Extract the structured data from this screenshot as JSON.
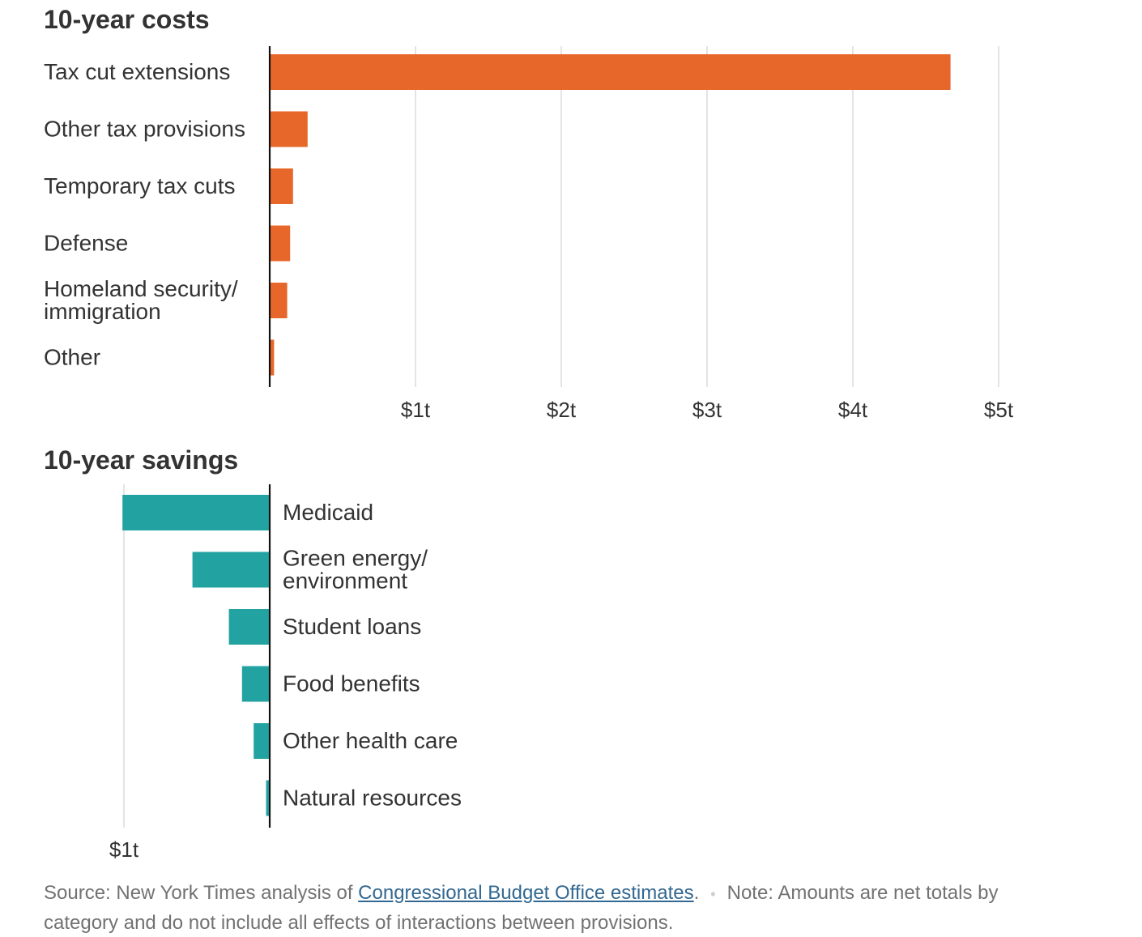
{
  "colors": {
    "costs": "#E7672A",
    "savings": "#22A3A2",
    "text": "#333333",
    "grid": "#d6d6d6",
    "axis": "#111111"
  },
  "chart_data": [
    {
      "type": "bar",
      "orientation": "horizontal",
      "title": "10-year costs",
      "unit": "trillion dollars",
      "categories": [
        "Tax cut extensions",
        "Other tax provisions",
        "Temporary tax cuts",
        "Defense",
        "Homeland security/ immigration",
        "Other"
      ],
      "values": [
        4.67,
        0.26,
        0.16,
        0.14,
        0.12,
        0.03
      ],
      "xlim": [
        0,
        5
      ],
      "ticks": [
        1,
        2,
        3,
        4,
        5
      ],
      "tick_labels": [
        "$1t",
        "$2t",
        "$3t",
        "$4t",
        "$5t"
      ],
      "grid": true
    },
    {
      "type": "bar",
      "orientation": "horizontal",
      "direction": "leftward",
      "title": "10-year savings",
      "unit": "trillion dollars",
      "categories": [
        "Medicaid",
        "Green energy/ environment",
        "Student loans",
        "Food benefits",
        "Other health care",
        "Natural resources"
      ],
      "values": [
        1.01,
        0.53,
        0.28,
        0.19,
        0.11,
        0.025
      ],
      "xlim": [
        0,
        1
      ],
      "ticks": [
        1
      ],
      "tick_labels": [
        "$1t"
      ],
      "grid": true
    }
  ],
  "footer": {
    "source_prefix": "Source: New York Times analysis of ",
    "source_link": "Congressional Budget Office estimates",
    "source_suffix": ".",
    "separator": "•",
    "note": "Note: Amounts are net totals by category and do not include all effects of interactions between provisions."
  }
}
